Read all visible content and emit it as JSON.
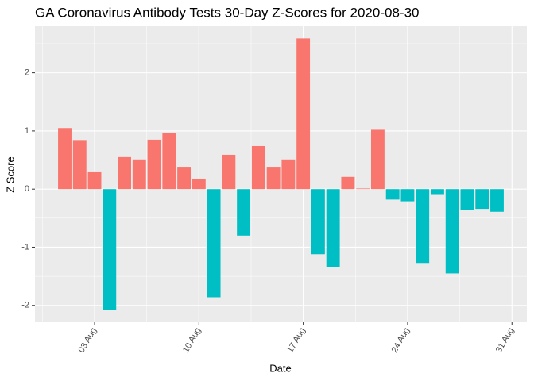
{
  "chart_data": {
    "type": "bar",
    "title": "GA Coronavirus Antibody Tests 30-Day Z-Scores for 2020-08-30",
    "x_label": "Date",
    "y_label": "Z Score",
    "x": [
      "01 Aug",
      "02 Aug",
      "03 Aug",
      "04 Aug",
      "05 Aug",
      "06 Aug",
      "07 Aug",
      "08 Aug",
      "09 Aug",
      "10 Aug",
      "11 Aug",
      "12 Aug",
      "13 Aug",
      "14 Aug",
      "15 Aug",
      "16 Aug",
      "17 Aug",
      "18 Aug",
      "19 Aug",
      "20 Aug",
      "21 Aug",
      "22 Aug",
      "23 Aug",
      "24 Aug",
      "25 Aug",
      "26 Aug",
      "27 Aug",
      "28 Aug",
      "29 Aug",
      "30 Aug"
    ],
    "values": [
      1.05,
      0.83,
      0.29,
      -2.08,
      0.55,
      0.51,
      0.85,
      0.96,
      0.37,
      0.18,
      -1.86,
      0.59,
      -0.8,
      0.74,
      0.37,
      0.51,
      2.59,
      -1.12,
      -1.34,
      0.21,
      0.01,
      1.02,
      -0.18,
      -0.21,
      -1.27,
      -0.1,
      -1.45,
      -0.36,
      -0.34,
      -0.39
    ],
    "positive_color": "#f8766d",
    "negative_color": "#00bfc4",
    "xlim": [
      "30 Jul",
      "01 Sep"
    ],
    "xticks": [
      "03 Aug",
      "10 Aug",
      "17 Aug",
      "24 Aug",
      "31 Aug"
    ],
    "ylim": [
      -2.29,
      2.8
    ],
    "yticks": [
      -2,
      -1,
      0,
      1,
      2
    ],
    "grid": true
  }
}
